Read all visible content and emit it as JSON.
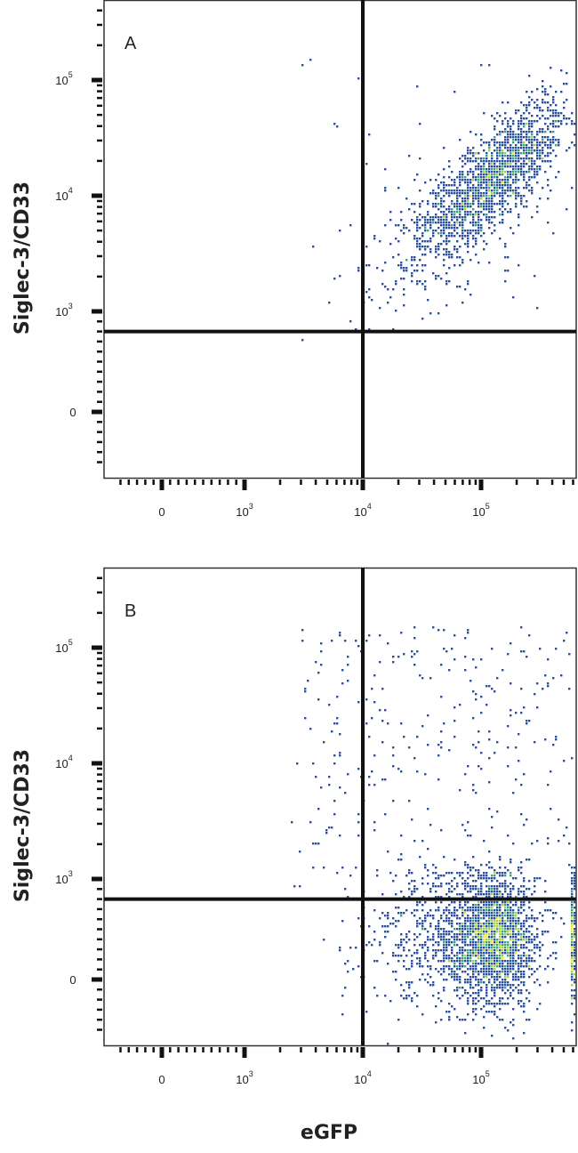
{
  "chart_data": [
    {
      "type": "scatter",
      "subtype": "flow-cytometry-density-plot",
      "panel_label": "A",
      "xlabel": "eGFP",
      "ylabel": "Siglec-3/CD33",
      "x_scale": "biexponential",
      "y_scale": "biexponential",
      "xlim": [
        -600,
        650000
      ],
      "ylim": [
        -600,
        400000
      ],
      "x_ticks": [
        {
          "base": "0",
          "exp": ""
        },
        {
          "base": "10",
          "exp": "3"
        },
        {
          "base": "10",
          "exp": "4"
        },
        {
          "base": "10",
          "exp": "5"
        }
      ],
      "x_tick_values": [
        0,
        1000,
        10000,
        100000
      ],
      "y_ticks": [
        {
          "base": "0",
          "exp": ""
        },
        {
          "base": "10",
          "exp": "3"
        },
        {
          "base": "10",
          "exp": "4"
        },
        {
          "base": "10",
          "exp": "5"
        }
      ],
      "y_tick_values": [
        0,
        1000,
        10000,
        100000
      ],
      "quadrant_gate": {
        "x": 10000,
        "y": 800
      },
      "density_colors": [
        "#2b4f9e",
        "#3aa57a",
        "#a6d13f",
        "#f2e33a",
        "#d9532b"
      ],
      "populations": [
        {
          "eGFP_center": 130000,
          "cd33_center": 15000,
          "x_scale": "log",
          "y_scale": "log",
          "x_spread_decades": 0.32,
          "y_spread_decades": 0.32,
          "correlation": 0.8,
          "events": 1500
        },
        {
          "eGFP_center": 60000,
          "cd33_center": 5000,
          "x_scale": "log",
          "y_scale": "log",
          "x_spread_decades": 0.35,
          "y_spread_decades": 0.35,
          "correlation": 0.5,
          "events": 350
        },
        {
          "eGFP_center": 30000,
          "cd33_center": 8000,
          "x_scale": "uniform-log",
          "y_scale": "uniform-log",
          "x_range": [
            3000,
            600000
          ],
          "y_range": [
            600,
            150000
          ],
          "events": 45
        }
      ],
      "grid": false
    },
    {
      "type": "scatter",
      "subtype": "flow-cytometry-density-plot",
      "panel_label": "B",
      "xlabel": "eGFP",
      "ylabel": "Siglec-3/CD33",
      "x_scale": "biexponential",
      "y_scale": "biexponential",
      "xlim": [
        -600,
        650000
      ],
      "ylim": [
        -600,
        400000
      ],
      "x_ticks": [
        {
          "base": "0",
          "exp": ""
        },
        {
          "base": "10",
          "exp": "3"
        },
        {
          "base": "10",
          "exp": "4"
        },
        {
          "base": "10",
          "exp": "5"
        }
      ],
      "x_tick_values": [
        0,
        1000,
        10000,
        100000
      ],
      "y_ticks": [
        {
          "base": "0",
          "exp": ""
        },
        {
          "base": "10",
          "exp": "3"
        },
        {
          "base": "10",
          "exp": "4"
        },
        {
          "base": "10",
          "exp": "5"
        }
      ],
      "y_tick_values": [
        0,
        1000,
        10000,
        100000
      ],
      "quadrant_gate": {
        "x": 10000,
        "y": 800
      },
      "density_colors": [
        "#2b4f9e",
        "#3aa57a",
        "#a6d13f",
        "#f2e33a",
        "#d9532b"
      ],
      "populations": [
        {
          "eGFP_center": 130000,
          "cd33_center": 420,
          "x_scale": "log",
          "y_scale": "linear",
          "x_spread_decades": 0.18,
          "y_spread_units": 320,
          "correlation": 0,
          "events": 1800
        },
        {
          "eGFP_center": 50000,
          "cd33_center": 400,
          "x_scale": "log",
          "y_scale": "linear",
          "x_spread_decades": 0.35,
          "y_spread_units": 380,
          "correlation": 0,
          "events": 700
        },
        {
          "eGFP_center": 40000,
          "cd33_center": 8000,
          "x_scale": "uniform-log",
          "y_scale": "uniform-log",
          "x_range": [
            2500,
            600000
          ],
          "y_range": [
            900,
            150000
          ],
          "events": 320
        },
        {
          "eGFP_center": 640000,
          "cd33_center": 400,
          "x_scale": "edge",
          "y_scale": "linear",
          "y_spread_units": 350,
          "events": 200
        }
      ],
      "grid": false
    }
  ]
}
